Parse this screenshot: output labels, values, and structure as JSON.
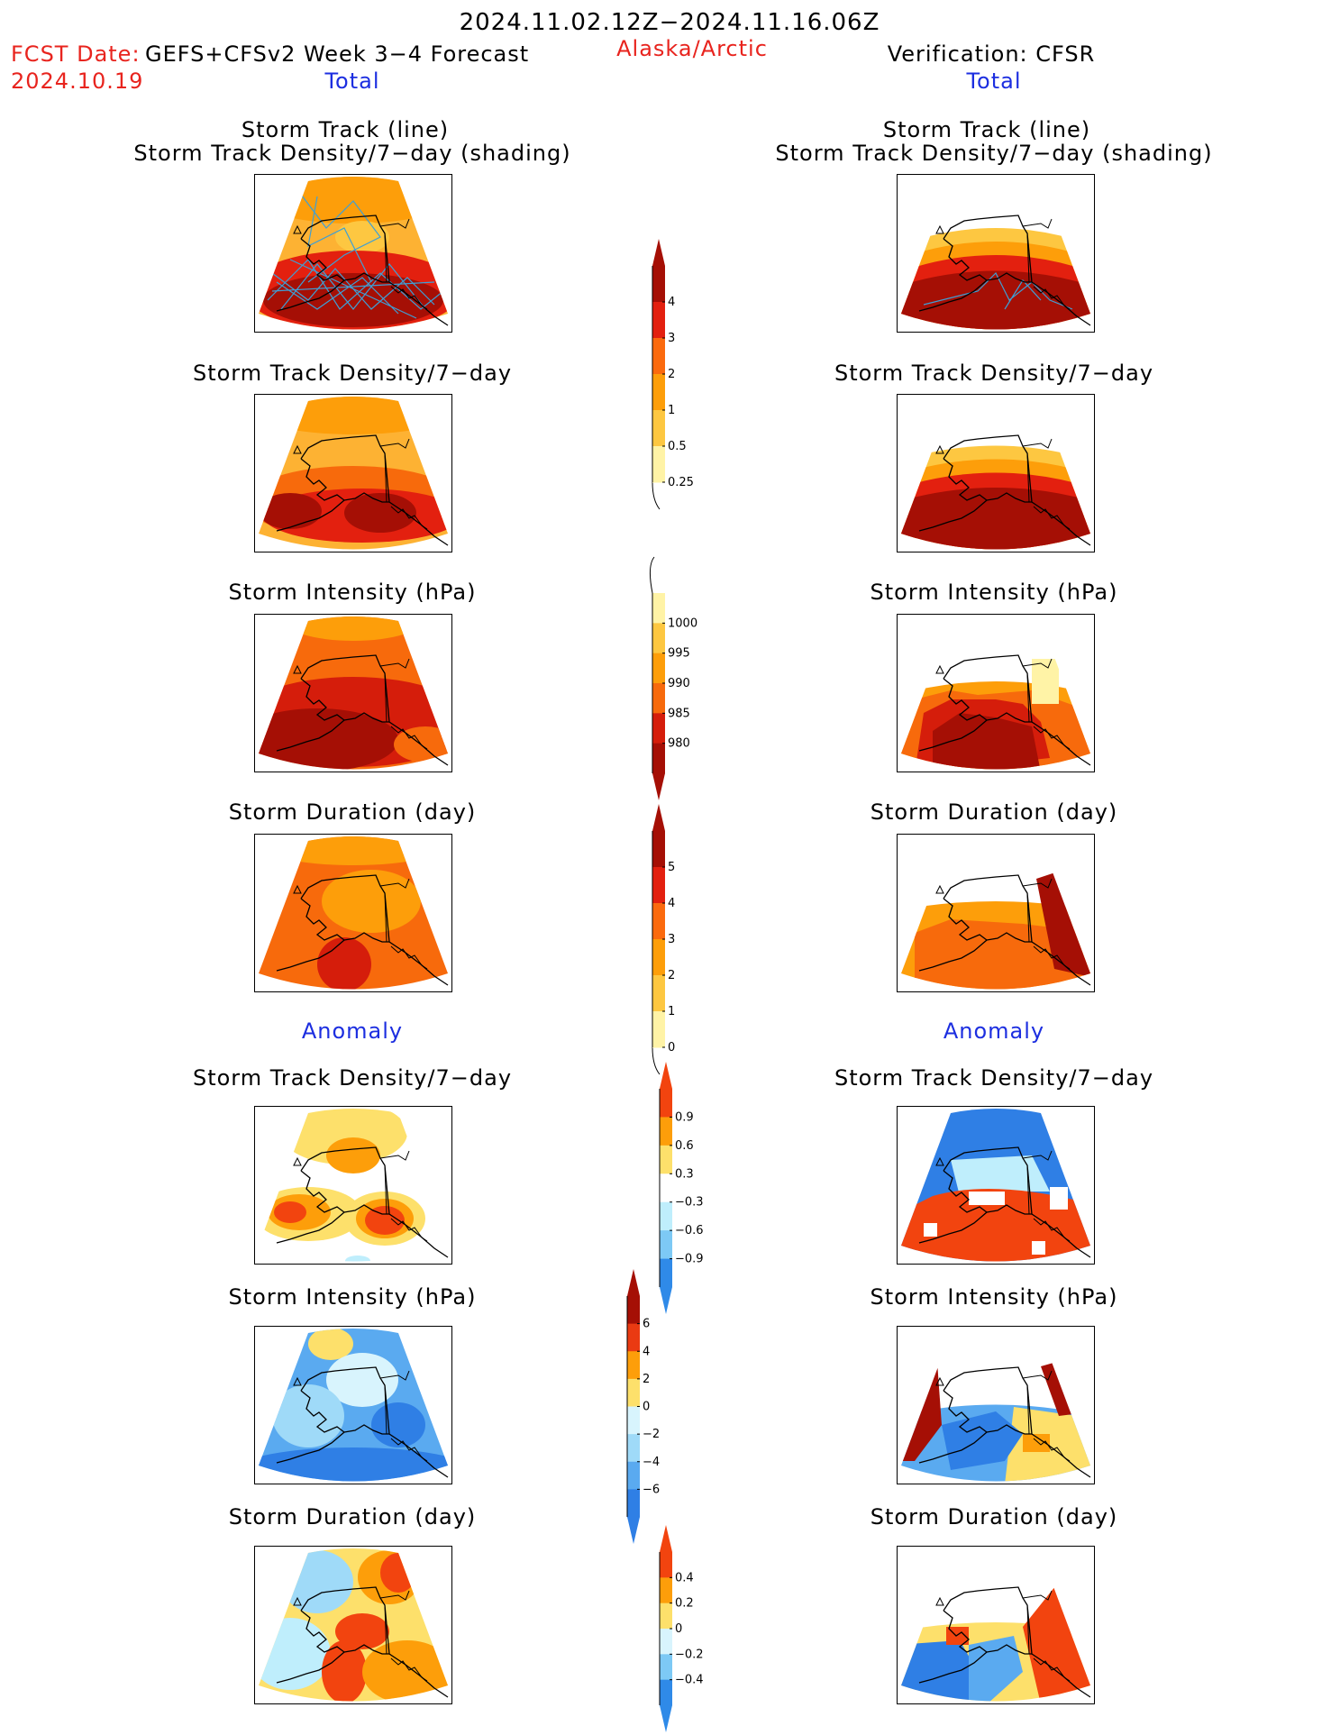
{
  "header": {
    "period": "2024.11.02.12Z−2024.11.16.06Z",
    "fcst_label": "FCST Date:",
    "model": "GEFS+CFSv2 Week 3−4 Forecast",
    "fcst_date": "2024.10.19",
    "region": "Alaska/Arctic",
    "verification": "Verification: CFSR"
  },
  "sections": {
    "total_left": "Total",
    "total_right": "Total",
    "anomaly_left": "Anomaly",
    "anomaly_right": "Anomaly"
  },
  "titles": {
    "track_line": "Storm Track (line)",
    "track_shading": "Storm Track Density/7−day (shading)",
    "density": "Storm Track Density/7−day",
    "intensity": "Storm Intensity (hPa)",
    "duration": "Storm Duration (day)"
  },
  "colorbars": [
    {
      "name": "density-total",
      "labels": [
        "4",
        "3",
        "2",
        "1",
        "0.5",
        "0.25"
      ],
      "colors": [
        "#a50f05",
        "#e3200f",
        "#fb6a0e",
        "#fd9e0a",
        "#fdc741",
        "#fff3a6"
      ],
      "arrows": "top"
    },
    {
      "name": "intensity-total",
      "labels": [
        "1000",
        "995",
        "990",
        "985",
        "980"
      ],
      "colors": [
        "#fff3a6",
        "#fdc741",
        "#fd9e0a",
        "#f76a0c",
        "#d51d0b",
        "#a50f05"
      ],
      "arrows": "bottom"
    },
    {
      "name": "duration-total",
      "labels": [
        "5",
        "4",
        "3",
        "2",
        "1",
        "0"
      ],
      "colors": [
        "#a50f05",
        "#e3200f",
        "#fb6a0e",
        "#fd9e0a",
        "#fdc741",
        "#fff3a6"
      ],
      "arrows": "top"
    },
    {
      "name": "density-anomaly",
      "labels": [
        "0.9",
        "0.6",
        "0.3",
        "−0.3",
        "−0.6",
        "−0.9"
      ],
      "colors": [
        "#f2440f",
        "#fd9e0a",
        "#fde06b",
        "#ffffff",
        "#bfeefc",
        "#7dc9f5",
        "#2f8ae8"
      ],
      "arrows": "both"
    },
    {
      "name": "intensity-anomaly",
      "labels": [
        "6",
        "4",
        "2",
        "0",
        "−2",
        "−4",
        "−6"
      ],
      "colors": [
        "#a50f05",
        "#ea3a12",
        "#fd9e0a",
        "#fde06b",
        "#d8f4fd",
        "#9fdaf8",
        "#5aaaf0",
        "#2f7fe5"
      ],
      "arrows": "both"
    },
    {
      "name": "duration-anomaly",
      "labels": [
        "0.4",
        "0.2",
        "0",
        "−0.2",
        "−0.4"
      ],
      "colors": [
        "#f2440f",
        "#fd9e0a",
        "#fde06b",
        "#d8f4fd",
        "#7dc9f5",
        "#2f8ae8"
      ],
      "arrows": "both"
    }
  ],
  "palette": {
    "dark_red": "#a50f05",
    "red": "#d51d0b",
    "orange_red": "#f76a0c",
    "orange": "#fd9e0a",
    "light_orange": "#fdc741",
    "light_yellow": "#fff3a6",
    "track_line": "#3e9fd5",
    "blue": "#2f7fe5",
    "light_blue": "#bfeefc"
  }
}
